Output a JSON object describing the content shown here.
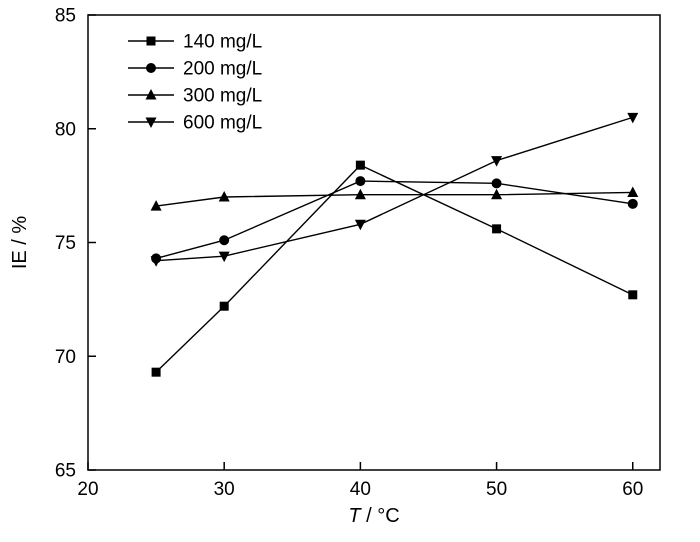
{
  "chart_data": {
    "type": "line",
    "title": "",
    "xlabel": "T / °C",
    "xlabel_italic_part": "T",
    "xlabel_plain_part": " / °C",
    "ylabel": "IE / %",
    "x": [
      25,
      30,
      40,
      50,
      60
    ],
    "xlim": [
      20,
      62
    ],
    "ylim": [
      65,
      85
    ],
    "xticks": [
      20,
      30,
      40,
      50,
      60
    ],
    "yticks": [
      65,
      70,
      75,
      80,
      85
    ],
    "grid": false,
    "legend_position": "top-left-inside",
    "line_color": "#000000",
    "background_color": "#ffffff",
    "series": [
      {
        "name": "140 mg/L",
        "marker": "square",
        "values": [
          69.3,
          72.2,
          78.4,
          75.6,
          72.7
        ]
      },
      {
        "name": "200 mg/L",
        "marker": "circle",
        "values": [
          74.3,
          75.1,
          77.7,
          77.6,
          76.7
        ]
      },
      {
        "name": "300 mg/L",
        "marker": "triangle-up",
        "values": [
          76.6,
          77.0,
          77.1,
          77.1,
          77.2
        ]
      },
      {
        "name": "600 mg/L",
        "marker": "triangle-down",
        "values": [
          74.2,
          74.4,
          75.8,
          78.6,
          80.5
        ]
      }
    ]
  }
}
